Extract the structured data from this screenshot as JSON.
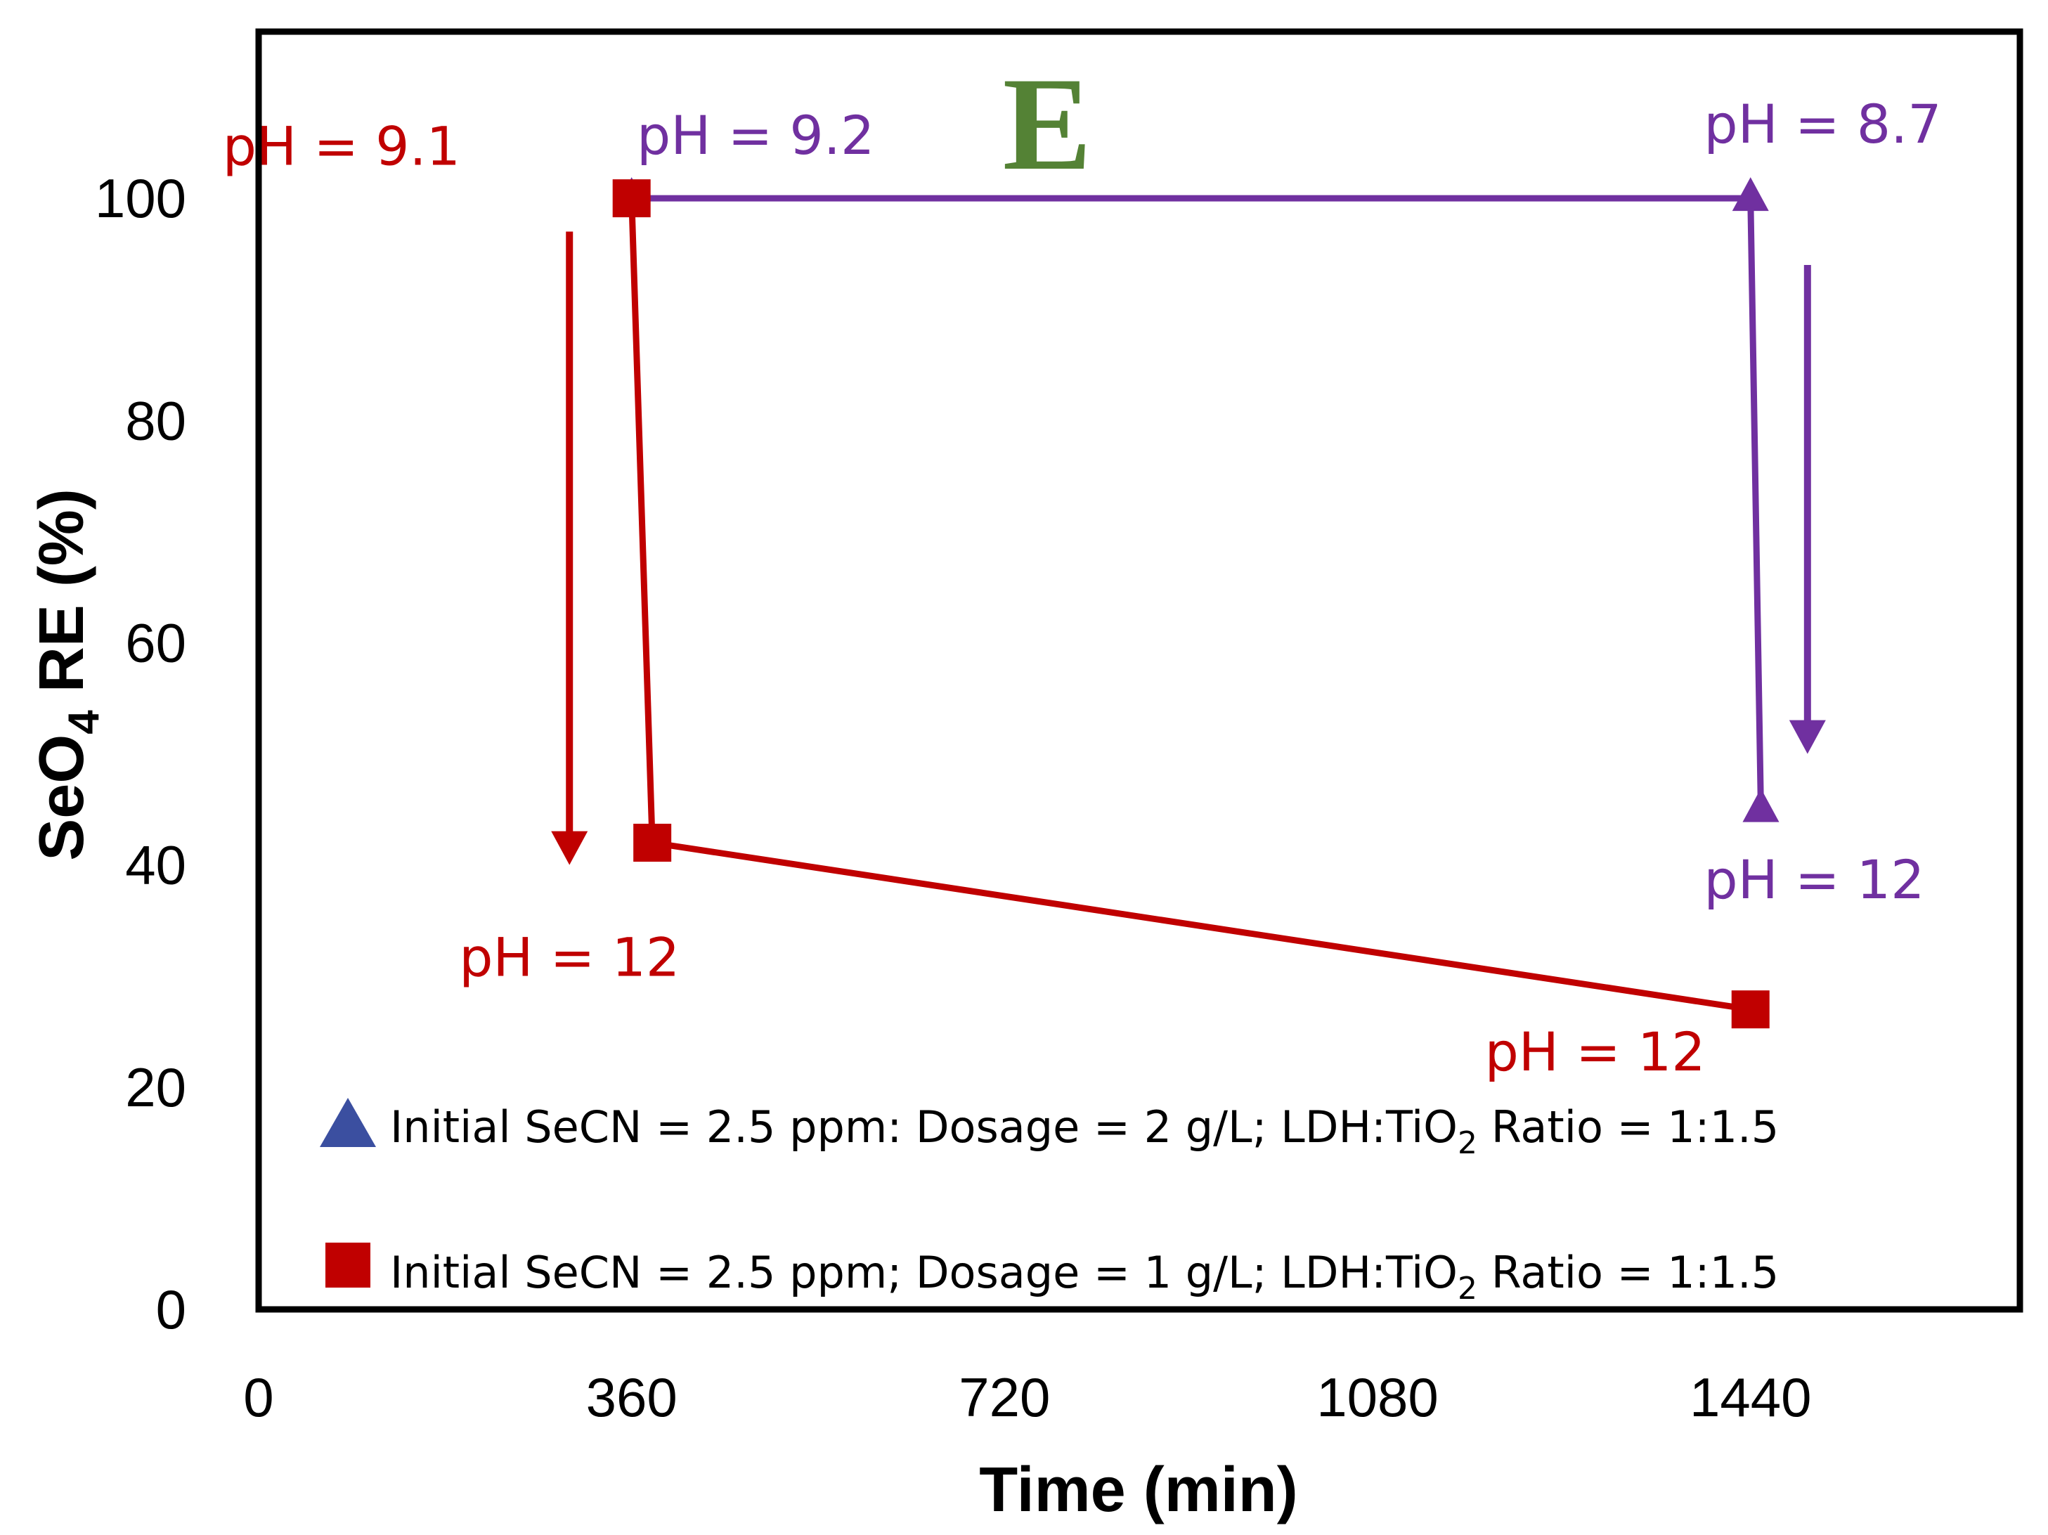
{
  "chart_data": {
    "type": "line",
    "panel_label": "E",
    "xlabel": "Time (min)",
    "ylabel_main": "SeO",
    "ylabel_sub": "4",
    "ylabel_rest": " RE (%)",
    "xlim": [
      0,
      1700
    ],
    "ylim": [
      0,
      115
    ],
    "x_ticks": [
      0,
      360,
      720,
      1080,
      1440
    ],
    "y_ticks": [
      0,
      20,
      40,
      60,
      80,
      100
    ],
    "colors": {
      "purple": "#7030a0",
      "red": "#c00000",
      "triangle_fill": "#3b4fa0",
      "green": "#548235"
    },
    "series": [
      {
        "name": "Initial SeCN = 2.5 ppm: Dosage = 2 g/L; LDH:TiO2 Ratio = 1:1.5",
        "legend_parts": [
          "Initial SeCN = 2.5 ppm: Dosage = 2 g/L; LDH:TiO",
          "2",
          " Ratio = 1:1.5"
        ],
        "marker": "triangle",
        "color": "#7030a0",
        "x": [
          360,
          1440,
          1450
        ],
        "y": [
          100,
          100,
          45
        ]
      },
      {
        "name": "Initial SeCN = 2.5 ppm; Dosage = 1 g/L; LDH:TiO2 Ratio = 1:1.5",
        "legend_parts": [
          "Initial SeCN = 2.5 ppm; Dosage = 1 g/L; LDH:TiO",
          "2",
          " Ratio = 1:1.5"
        ],
        "marker": "square",
        "color": "#c00000",
        "x": [
          360,
          380,
          1440
        ],
        "y": [
          100,
          42,
          27
        ]
      }
    ],
    "annotations": [
      {
        "text": "pH = 9.1",
        "color": "#c00000",
        "x": 80,
        "y": 103,
        "anchor": "middle"
      },
      {
        "text": "pH = 9.2",
        "color": "#7030a0",
        "x": 365,
        "y": 104,
        "anchor": "start"
      },
      {
        "text": "pH = 8.7",
        "color": "#7030a0",
        "x": 1395,
        "y": 105,
        "anchor": "start"
      },
      {
        "text": "pH = 12",
        "color": "#c00000",
        "x": 300,
        "y": 30,
        "anchor": "middle"
      },
      {
        "text": "pH = 12",
        "color": "#7030a0",
        "x": 1395,
        "y": 37,
        "anchor": "start"
      },
      {
        "text": "pH = 12",
        "color": "#c00000",
        "x": 1290,
        "y": 21.5,
        "anchor": "middle"
      }
    ],
    "arrows": [
      {
        "color": "#c00000",
        "x": 300,
        "y1": 97,
        "y2": 40
      },
      {
        "color": "#7030a0",
        "x": 1495,
        "y1": 94,
        "y2": 50
      }
    ]
  }
}
